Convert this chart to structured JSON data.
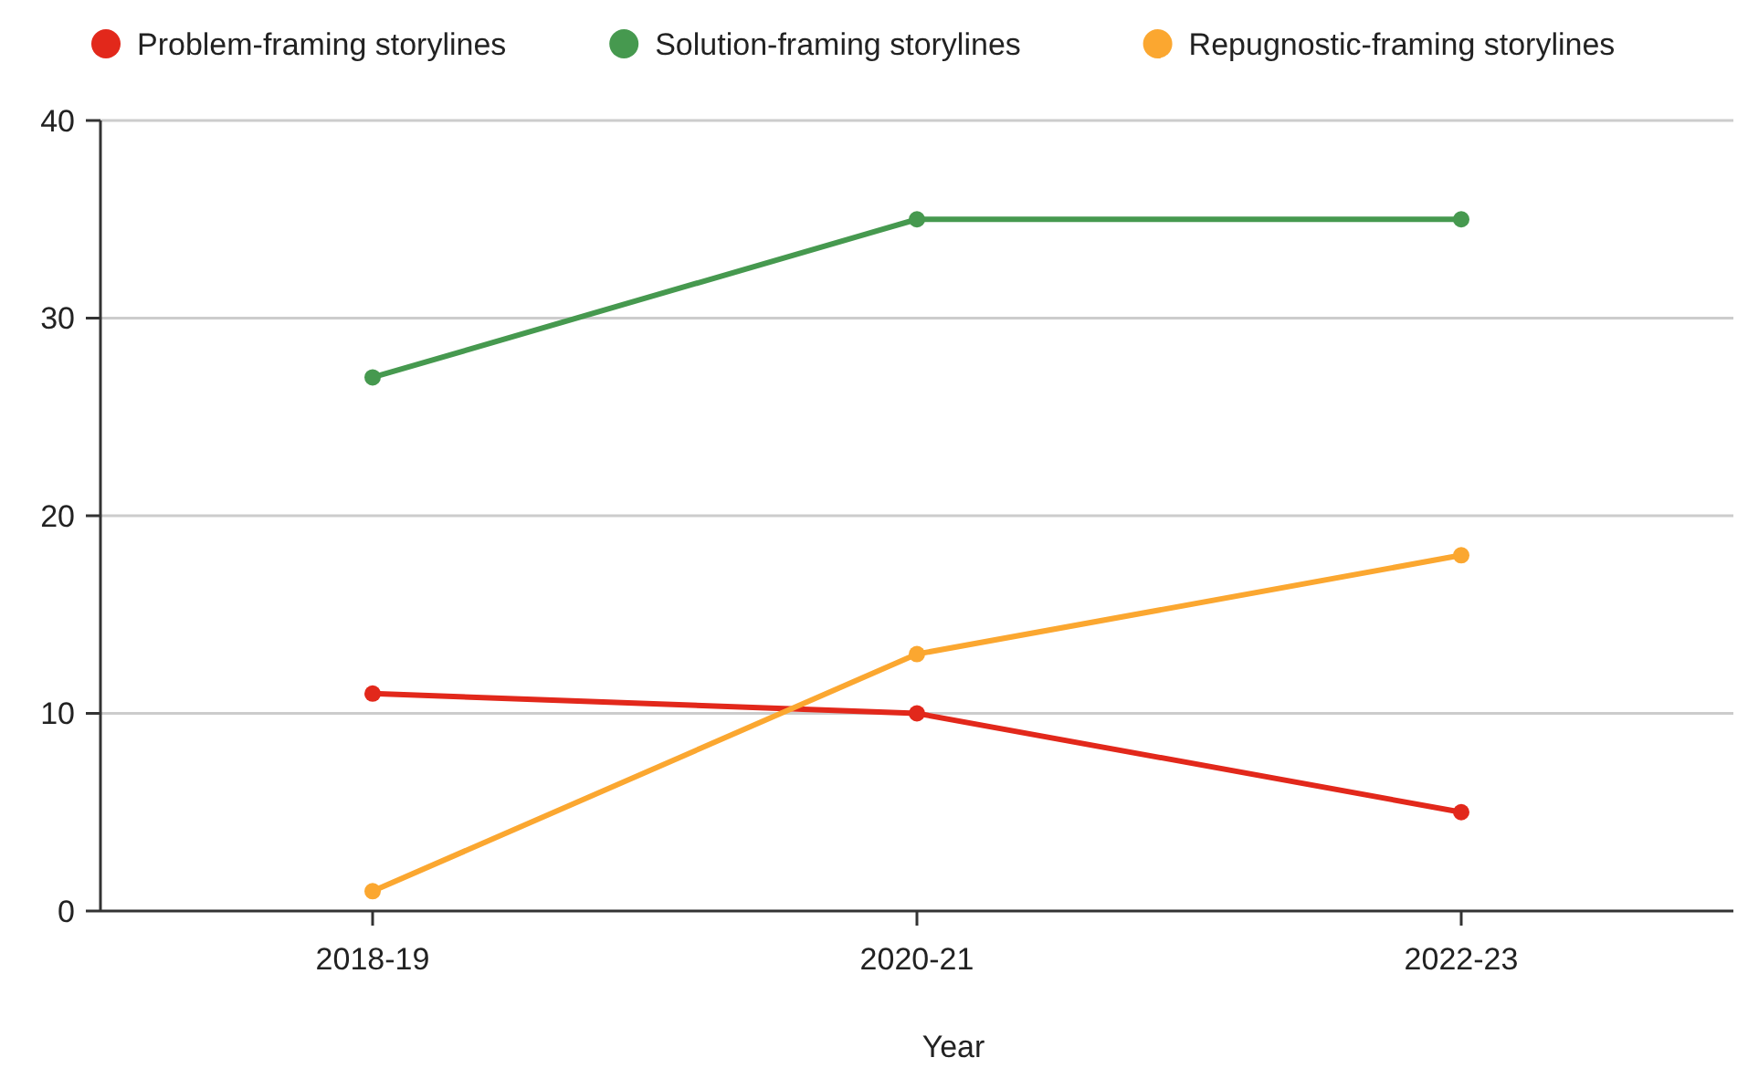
{
  "chart_data": {
    "type": "line",
    "xlabel": "Year",
    "categories": [
      "2018-19",
      "2020-21",
      "2022-23"
    ],
    "series": [
      {
        "name": "Problem-framing storylines",
        "color": "#e2281b",
        "values": [
          11,
          10,
          5
        ]
      },
      {
        "name": "Solution-framing storylines",
        "color": "#46994f",
        "values": [
          27,
          35,
          35
        ]
      },
      {
        "name": "Repugnostic-framing storylines",
        "color": "#fba730",
        "values": [
          1,
          13,
          18
        ]
      }
    ],
    "ylim": [
      0,
      40
    ],
    "yticks": [
      0,
      10,
      20,
      30,
      40
    ],
    "grid": "y",
    "legend": "top",
    "marker": "circle",
    "line_style": "solid"
  }
}
